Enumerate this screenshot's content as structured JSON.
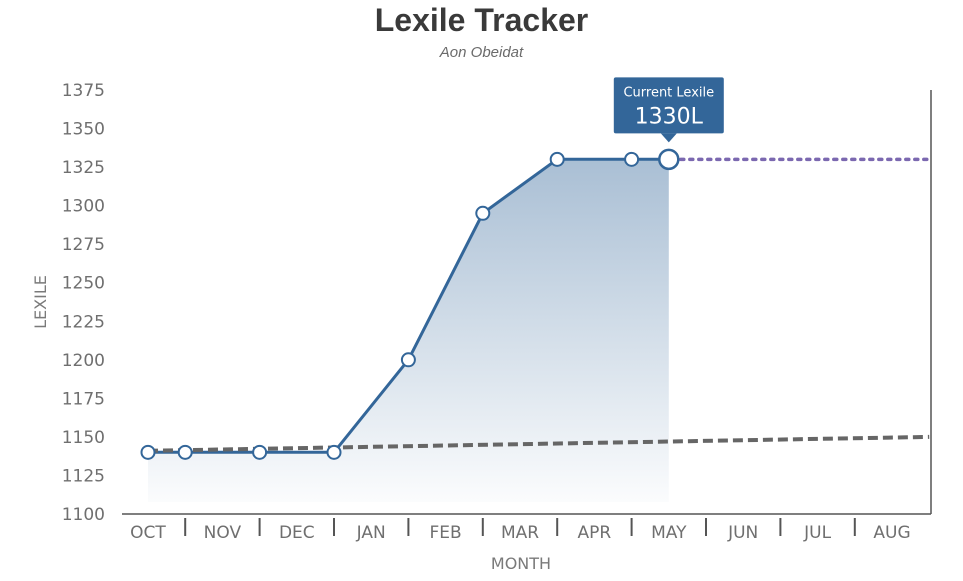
{
  "chart_data": {
    "type": "line",
    "title": "Lexile Tracker",
    "subtitle": "Aon Obeidat",
    "xlabel": "MONTH",
    "ylabel": "LEXILE",
    "categories": [
      "OCT",
      "NOV",
      "DEC",
      "JAN",
      "FEB",
      "MAR",
      "APR",
      "MAY",
      "JUN",
      "JUL",
      "AUG"
    ],
    "yticks": [
      1100,
      1125,
      1150,
      1175,
      1200,
      1225,
      1250,
      1275,
      1300,
      1325,
      1350,
      1375
    ],
    "ylim": [
      1100,
      1375
    ],
    "grid": false,
    "series": [
      {
        "name": "",
        "style": "solid-with-area",
        "color": "#336699",
        "points": [
          {
            "x": 0.0,
            "y": 1140
          },
          {
            "x": 0.5,
            "y": 1140
          },
          {
            "x": 1.5,
            "y": 1140
          },
          {
            "x": 2.5,
            "y": 1140
          },
          {
            "x": 3.5,
            "y": 1200
          },
          {
            "x": 4.5,
            "y": 1295
          },
          {
            "x": 5.5,
            "y": 1330
          },
          {
            "x": 6.5,
            "y": 1330
          },
          {
            "x": 7.0,
            "y": 1330
          }
        ]
      },
      {
        "name": "",
        "style": "dashed-trend",
        "color": "#666666",
        "points": [
          {
            "x": 0.0,
            "y": 1141
          },
          {
            "x": 10.5,
            "y": 1150
          }
        ]
      },
      {
        "name": "",
        "style": "dotted-projection",
        "color": "#7b68b0",
        "points": [
          {
            "x": 7.0,
            "y": 1330
          },
          {
            "x": 10.5,
            "y": 1330
          }
        ]
      }
    ],
    "annotation": {
      "label": "Current Lexile",
      "value": "1330L",
      "x": 7.0,
      "y": 1330,
      "color": "#336699"
    }
  }
}
